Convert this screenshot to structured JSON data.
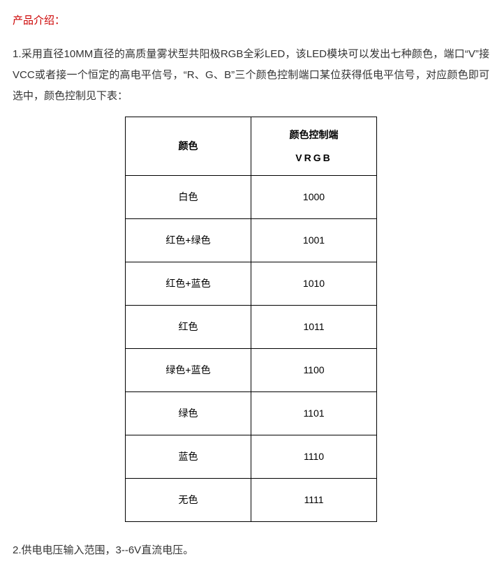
{
  "title": "产品介绍：",
  "paragraph1": "1.采用直径10MM直径的高质量雾状型共阳极RGB全彩LED，该LED模块可以发出七种颜色，端口“V”接VCC或者接一个恒定的高电平信号，“R、G、B”三个颜色控制端口某位获得低电平信号，对应颜色即可选中，颜色控制见下表：",
  "table": {
    "header_col1": "颜色",
    "header_col2_line1": "颜色控制端",
    "header_col2_line2": "VRGB",
    "rows": [
      {
        "color": "白色",
        "code": "1000"
      },
      {
        "color": "红色+绿色",
        "code": "1001"
      },
      {
        "color": "红色+蓝色",
        "code": "1010"
      },
      {
        "color": "红色",
        "code": "1011"
      },
      {
        "color": "绿色+蓝色",
        "code": "1100"
      },
      {
        "color": "绿色",
        "code": "1101"
      },
      {
        "color": "蓝色",
        "code": "1110"
      },
      {
        "color": "无色",
        "code": "1111"
      }
    ]
  },
  "paragraph2": "2.供电电压输入范围，3--6V直流电压。"
}
